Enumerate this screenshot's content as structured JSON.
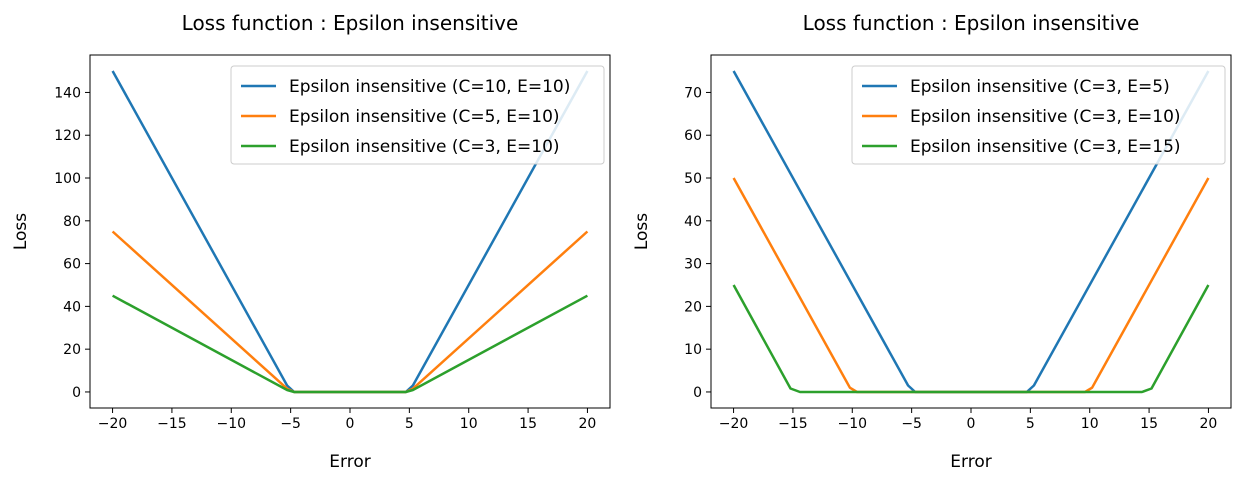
{
  "colors": {
    "blue": "#1f77b4",
    "orange": "#ff7f0e",
    "green": "#2ca02c"
  },
  "chart_data": [
    {
      "type": "line",
      "title": "Loss function : Epsilon insensitive",
      "xlabel": "Error",
      "ylabel": "Loss",
      "xlim": [
        -21.9,
        21.9
      ],
      "ylim": [
        -7.5,
        157.5
      ],
      "xticks": [
        -20,
        -15,
        -10,
        -5,
        0,
        5,
        10,
        15,
        20
      ],
      "xtick_labels": [
        "−20",
        "−15",
        "−10",
        "−5",
        "0",
        "5",
        "10",
        "15",
        "20"
      ],
      "yticks": [
        0,
        20,
        40,
        60,
        80,
        100,
        120,
        140
      ],
      "ytick_labels": [
        "0",
        "20",
        "40",
        "60",
        "80",
        "100",
        "120",
        "140"
      ],
      "legend": "top-right",
      "grid": false,
      "series": [
        {
          "name": "Epsilon insensitive (C=10, E=10)",
          "color": "#1f77b4",
          "x": [
            -20,
            -5.3,
            -4.7,
            4.7,
            5.3,
            20
          ],
          "y": [
            150,
            3,
            0,
            0,
            3,
            150
          ]
        },
        {
          "name": "Epsilon insensitive (C=5, E=10)",
          "color": "#ff7f0e",
          "x": [
            -20,
            -5.3,
            -4.7,
            4.7,
            5.3,
            20
          ],
          "y": [
            75,
            1.5,
            0,
            0,
            1.5,
            75
          ]
        },
        {
          "name": "Epsilon insensitive (C=3, E=10)",
          "color": "#2ca02c",
          "x": [
            -20,
            -5.3,
            -4.7,
            4.7,
            5.3,
            20
          ],
          "y": [
            45,
            0.9,
            0,
            0,
            0.9,
            45
          ]
        }
      ]
    },
    {
      "type": "line",
      "title": "Loss function : Epsilon insensitive",
      "xlabel": "Error",
      "ylabel": "Loss",
      "xlim": [
        -21.9,
        21.9
      ],
      "ylim": [
        -3.75,
        78.75
      ],
      "xticks": [
        -20,
        -15,
        -10,
        -5,
        0,
        5,
        10,
        15,
        20
      ],
      "xtick_labels": [
        "−20",
        "−15",
        "−10",
        "−5",
        "0",
        "5",
        "10",
        "15",
        "20"
      ],
      "yticks": [
        0,
        10,
        20,
        30,
        40,
        50,
        60,
        70
      ],
      "ytick_labels": [
        "0",
        "10",
        "20",
        "30",
        "40",
        "50",
        "60",
        "70"
      ],
      "legend": "top-right",
      "grid": false,
      "series": [
        {
          "name": "Epsilon insensitive (C=3, E=5)",
          "color": "#1f77b4",
          "x": [
            -20,
            -5.3,
            -4.7,
            4.7,
            5.3,
            20
          ],
          "y": [
            75,
            1.5,
            0,
            0,
            1.5,
            75
          ]
        },
        {
          "name": "Epsilon insensitive (C=3, E=10)",
          "color": "#ff7f0e",
          "x": [
            -20,
            -10.2,
            -9.6,
            9.6,
            10.2,
            20
          ],
          "y": [
            50,
            1,
            0,
            0,
            1,
            50
          ]
        },
        {
          "name": "Epsilon insensitive (C=3, E=15)",
          "color": "#2ca02c",
          "x": [
            -20,
            -15.2,
            -14.4,
            14.4,
            15.2,
            20
          ],
          "y": [
            25,
            0.8,
            0,
            0,
            0.8,
            25
          ]
        }
      ]
    }
  ]
}
